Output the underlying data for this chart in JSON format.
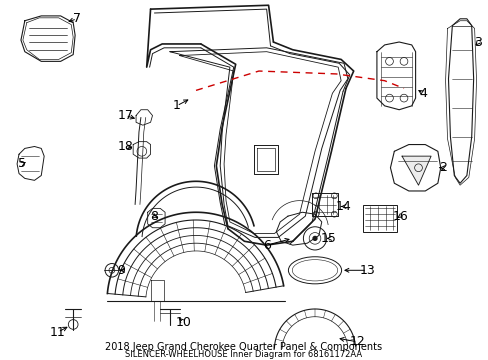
{
  "title": "2018 Jeep Grand Cherokee Quarter Panel & Components",
  "subtitle": "SILENCER-WHEELHOUSE Inner Diagram for 68161172AA",
  "bg_color": "#ffffff",
  "lc": "#1a1a1a",
  "rc": "#cc0000",
  "label_fontsize": 9,
  "title_fontsize": 7,
  "sub_fontsize": 6,
  "fig_w": 4.89,
  "fig_h": 3.6,
  "dpi": 100
}
